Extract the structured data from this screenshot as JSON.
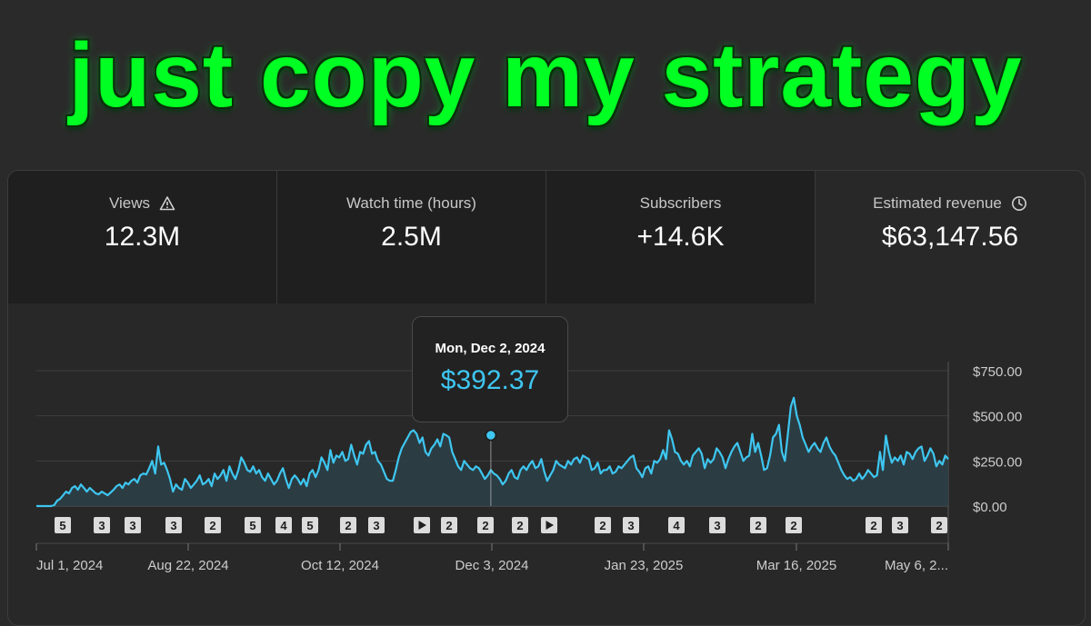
{
  "headline": "just copy my strategy",
  "metrics": [
    {
      "label": "Views",
      "value": "12.3M",
      "icon": "warning-icon"
    },
    {
      "label": "Watch time (hours)",
      "value": "2.5M"
    },
    {
      "label": "Subscribers",
      "value": "+14.6K"
    },
    {
      "label": "Estimated revenue",
      "value": "$63,147.56",
      "icon": "clock-icon"
    }
  ],
  "tooltip": {
    "date": "Mon, Dec 2, 2024",
    "value": "$392.37"
  },
  "colors": {
    "line": "#3ec6f0",
    "accent": "#00ff22",
    "fill": "#2b3f48"
  },
  "markers": [
    "5",
    "3",
    "3",
    "3",
    "2",
    "5",
    "4",
    "5",
    "2",
    "3",
    "play",
    "2",
    "2",
    "2",
    "play",
    "2",
    "3",
    "4",
    "3",
    "2",
    "2",
    "2",
    "3",
    "2"
  ],
  "chart_data": {
    "type": "area",
    "title": "",
    "xlabel": "",
    "ylabel": "",
    "ylim": [
      0,
      750
    ],
    "yticks": [
      "$750.00",
      "$500.00",
      "$250.00",
      "$0.00"
    ],
    "xticks": [
      "Jul 1, 2024",
      "Aug 22, 2024",
      "Oct 12, 2024",
      "Dec 3, 2024",
      "Jan 23, 2025",
      "Mar 16, 2025",
      "May 6, 2..."
    ],
    "highlight": {
      "date": "Dec 2, 2024",
      "value": 392.37
    },
    "grid": true,
    "series": [
      {
        "values": [
          0,
          0,
          0,
          0,
          0,
          0,
          5,
          30,
          40,
          60,
          80,
          70,
          100,
          110,
          90,
          120,
          100,
          80,
          100,
          85,
          70,
          65,
          80,
          70,
          60,
          75,
          90,
          110,
          120,
          100,
          130,
          120,
          140,
          150,
          130,
          170,
          180,
          175,
          210,
          250,
          180,
          330,
          230,
          240,
          200,
          150,
          80,
          120,
          100,
          90,
          150,
          130,
          100,
          120,
          140,
          170,
          120,
          130,
          150,
          110,
          180,
          150,
          170,
          200,
          140,
          220,
          180,
          150,
          200,
          270,
          240,
          200,
          190,
          220,
          180,
          200,
          160,
          140,
          180,
          150,
          120,
          140,
          180,
          210,
          150,
          100,
          150,
          170,
          150,
          120,
          150,
          110,
          180,
          200,
          160,
          200,
          270,
          240,
          200,
          310,
          240,
          280,
          270,
          300,
          250,
          260,
          340,
          280,
          230,
          300,
          290,
          340,
          360,
          290,
          300,
          250,
          230,
          190,
          150,
          140,
          140,
          200,
          270,
          320,
          350,
          380,
          410,
          420,
          400,
          350,
          380,
          300,
          280,
          320,
          340,
          370,
          330,
          400,
          392,
          380,
          300,
          260,
          220,
          200,
          250,
          230,
          210,
          200,
          220,
          210,
          180,
          150,
          170,
          200,
          180,
          170,
          150,
          120,
          140,
          180,
          200,
          160,
          150,
          200,
          220,
          200,
          230,
          250,
          210,
          220,
          260,
          190,
          140,
          170,
          200,
          250,
          230,
          220,
          210,
          250,
          230,
          260,
          270,
          240,
          280,
          270,
          260,
          200,
          210,
          240,
          180,
          200,
          200,
          220,
          180,
          190,
          220,
          210,
          230,
          250,
          270,
          280,
          210,
          190,
          160,
          210,
          220,
          180,
          250,
          240,
          260,
          310,
          260,
          420,
          370,
          300,
          290,
          250,
          230,
          250,
          220,
          280,
          300,
          320,
          290,
          210,
          260,
          240,
          260,
          320,
          300,
          270,
          210,
          260,
          300,
          330,
          350,
          300,
          250,
          270,
          280,
          400,
          300,
          350,
          280,
          200,
          210,
          280,
          380,
          400,
          450,
          300,
          250,
          400,
          550,
          600,
          500,
          450,
          380,
          340,
          300,
          330,
          350,
          320,
          300,
          350,
          380,
          330,
          300,
          280,
          240,
          200,
          170,
          150,
          160,
          140,
          150,
          180,
          150,
          170,
          200,
          180,
          160,
          170,
          300,
          200,
          390,
          300,
          240,
          270,
          250,
          280,
          230,
          300,
          290,
          260,
          300,
          320,
          330,
          250,
          280,
          320,
          290,
          220,
          250,
          230,
          280,
          260
        ]
      }
    ]
  }
}
